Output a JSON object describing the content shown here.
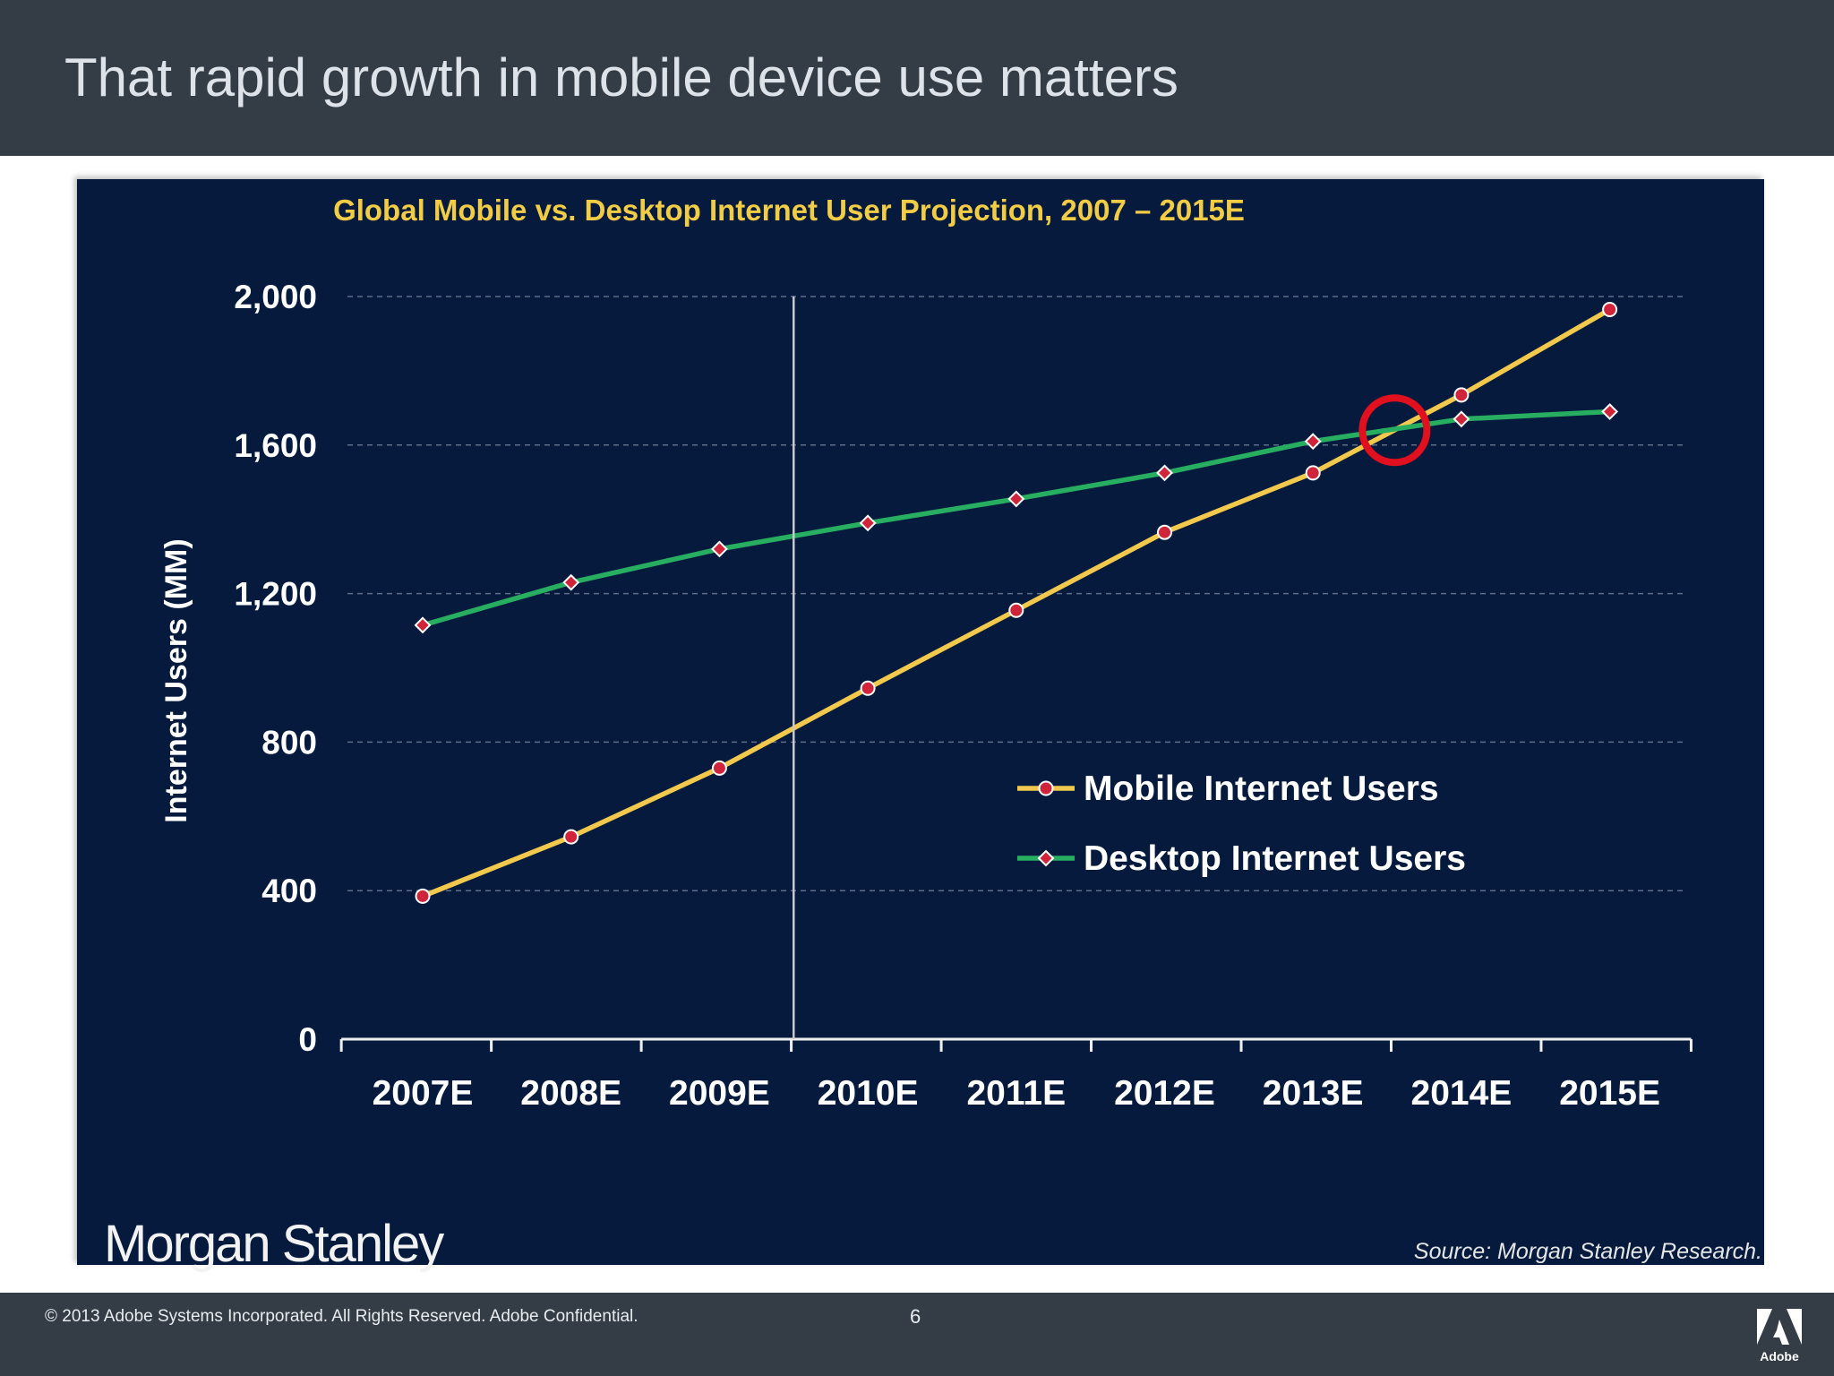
{
  "slide": {
    "title": "That rapid growth in mobile device use matters"
  },
  "chart_data": {
    "type": "line",
    "title": "Global Mobile vs. Desktop Internet User Projection, 2007 – 2015E",
    "ylabel": "Internet Users (MM)",
    "xlabel": "",
    "categories": [
      "2007E",
      "2008E",
      "2009E",
      "2010E",
      "2011E",
      "2012E",
      "2013E",
      "2014E",
      "2015E"
    ],
    "ylim": [
      0,
      2000
    ],
    "yticks": [
      0,
      400,
      800,
      1200,
      1600,
      2000
    ],
    "ytick_labels": [
      "0",
      "400",
      "800",
      "1,200",
      "1,600",
      "2,000"
    ],
    "grid": "dashed horizontal",
    "series": [
      {
        "name": "Mobile Internet Users",
        "color": "#f2c94c",
        "marker": "circle",
        "values": [
          385,
          545,
          730,
          945,
          1155,
          1365,
          1525,
          1735,
          1965
        ]
      },
      {
        "name": "Desktop Internet Users",
        "color": "#27ae60",
        "marker": "diamond",
        "values": [
          1115,
          1230,
          1320,
          1390,
          1455,
          1525,
          1610,
          1670,
          1690
        ]
      }
    ],
    "marker_color": "#d0243a",
    "annotations": {
      "crossover_circle": {
        "between": [
          "2013E",
          "2014E"
        ],
        "x_index": 6.55,
        "y": 1640,
        "color": "#e0101e"
      },
      "vertical_line": {
        "x_index": 2.5,
        "color": "#c8c8c8"
      }
    },
    "legend_position": "center-right"
  },
  "branding": {
    "chart_logo": "Morgan Stanley",
    "source": "Source: Morgan Stanley Research."
  },
  "footer": {
    "copyright": "© 2013 Adobe Systems Incorporated.  All Rights Reserved.  Adobe Confidential.",
    "page": "6",
    "logo_text": "Adobe",
    "logo_icon": "adobe-logo-icon"
  }
}
